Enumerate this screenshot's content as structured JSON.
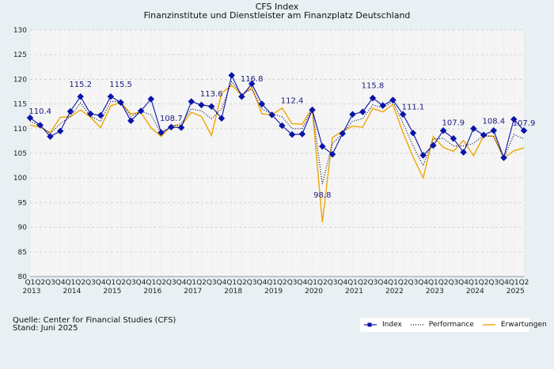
{
  "title": "CFS Index",
  "subtitle": "Finanzinstitute und Dienstleister am Finanzplatz Deutschland",
  "source_line1": "Quelle: Center for Financial Studies (CFS)",
  "source_line2": "Stand: Juni 2025",
  "colors": {
    "index": "#0a14a8",
    "performance": "#0a0a2a",
    "erwartungen": "#f0a500",
    "plot_bg": "#f5f5f5"
  },
  "chart_data": {
    "type": "line",
    "title": "CFS Index",
    "subtitle": "Finanzinstitute und Dienstleister am Finanzplatz Deutschland",
    "ylim": [
      80,
      130
    ],
    "yticks": [
      80,
      85,
      90,
      95,
      100,
      105,
      110,
      115,
      120,
      125,
      130
    ],
    "grid": true,
    "legend_position": "bottom-right",
    "quarter_labels": [
      "Q1",
      "Q2",
      "Q3",
      "Q4"
    ],
    "years": [
      "2013",
      "2014",
      "2015",
      "2016",
      "2017",
      "2018",
      "2019",
      "2020",
      "2021",
      "2022",
      "2023",
      "2024",
      "2025"
    ],
    "x": [
      "Q1 2013",
      "Q2 2013",
      "Q3 2013",
      "Q4 2013",
      "Q1 2014",
      "Q2 2014",
      "Q3 2014",
      "Q4 2014",
      "Q1 2015",
      "Q2 2015",
      "Q3 2015",
      "Q4 2015",
      "Q1 2016",
      "Q2 2016",
      "Q3 2016",
      "Q4 2016",
      "Q1 2017",
      "Q2 2017",
      "Q3 2017",
      "Q4 2017",
      "Q1 2018",
      "Q2 2018",
      "Q3 2018",
      "Q4 2018",
      "Q1 2019",
      "Q2 2019",
      "Q3 2019",
      "Q4 2019",
      "Q1 2020",
      "Q2 2020",
      "Q3 2020",
      "Q4 2020",
      "Q1 2021",
      "Q2 2021",
      "Q3 2021",
      "Q4 2021",
      "Q1 2022",
      "Q2 2022",
      "Q3 2022",
      "Q4 2022",
      "Q1 2023",
      "Q2 2023",
      "Q3 2023",
      "Q4 2023",
      "Q1 2024",
      "Q2 2024",
      "Q3 2024",
      "Q4 2024",
      "Q1 2025",
      "Q2 2025"
    ],
    "series": [
      {
        "name": "Index",
        "values": [
          112.2,
          110.7,
          108.4,
          109.5,
          113.5,
          116.5,
          113.0,
          112.7,
          116.5,
          115.3,
          111.6,
          113.6,
          116.0,
          109.2,
          110.3,
          110.2,
          115.5,
          114.8,
          114.5,
          112.1,
          120.8,
          116.5,
          119.1,
          115.0,
          112.8,
          110.6,
          108.8,
          108.9,
          113.8,
          106.4,
          104.8,
          109.0,
          112.9,
          113.4,
          116.2,
          114.7,
          115.8,
          112.9,
          109.1,
          104.6,
          106.6,
          109.6,
          108.0,
          105.2,
          110.0,
          108.7,
          109.6,
          104.1,
          111.9,
          109.6
        ]
      },
      {
        "name": "Performance",
        "values": [
          111.5,
          110.5,
          109.0,
          111.0,
          112.5,
          115.2,
          112.5,
          111.5,
          115.5,
          115.5,
          112.5,
          113.5,
          112.8,
          109.0,
          110.5,
          111.0,
          114.0,
          113.6,
          112.0,
          114.0,
          119.5,
          117.0,
          118.0,
          114.0,
          113.0,
          112.4,
          110.0,
          110.0,
          114.0,
          98.8,
          107.0,
          109.0,
          111.5,
          112.0,
          114.8,
          114.2,
          115.5,
          111.1,
          106.5,
          102.5,
          107.9,
          108.0,
          106.5,
          106.5,
          107.0,
          108.6,
          108.4,
          104.0,
          108.8,
          107.9
        ]
      },
      {
        "name": "Erwartungen",
        "values": [
          110.7,
          110.3,
          109.2,
          112.3,
          112.4,
          113.8,
          112.3,
          110.2,
          114.6,
          115.3,
          113.0,
          113.3,
          110.2,
          108.4,
          110.6,
          110.6,
          113.3,
          112.5,
          108.6,
          117.2,
          118.8,
          116.8,
          118.4,
          113.0,
          112.8,
          114.2,
          111.0,
          110.9,
          114.2,
          91.0,
          108.2,
          109.5,
          110.5,
          110.3,
          114.1,
          113.4,
          114.9,
          109.2,
          104.3,
          100.0,
          108.4,
          106.2,
          105.4,
          107.6,
          104.5,
          108.5,
          108.5,
          104.0,
          105.5,
          106.1
        ]
      }
    ],
    "annotations": [
      {
        "text": "110.4",
        "label_at": [
          "Q2 2013",
          113.0
        ]
      },
      {
        "text": "115.2",
        "label_at": [
          "Q2 2014",
          118.5
        ]
      },
      {
        "text": "115.5",
        "label_at": [
          "Q2 2015",
          118.5
        ]
      },
      {
        "text": "108.7",
        "label_at": [
          "Q3 2016",
          111.6
        ]
      },
      {
        "text": "113.6",
        "label_at": [
          "Q3 2017",
          116.5
        ]
      },
      {
        "text": "116.8",
        "label_at": [
          "Q3 2018",
          119.6
        ]
      },
      {
        "text": "112.4",
        "label_at": [
          "Q3 2019",
          115.2
        ]
      },
      {
        "text": "98.8",
        "label_at": [
          "Q2 2020",
          96.0
        ]
      },
      {
        "text": "115.8",
        "label_at": [
          "Q3 2021",
          118.2
        ]
      },
      {
        "text": "111.1",
        "label_at": [
          "Q3 2022",
          113.9
        ]
      },
      {
        "text": "107.9",
        "label_at": [
          "Q3 2023",
          110.7
        ]
      },
      {
        "text": "108.4",
        "label_at": [
          "Q3 2024",
          111.0
        ]
      },
      {
        "text": "107.9",
        "label_at": [
          "Q2 2025",
          110.6
        ]
      }
    ]
  }
}
